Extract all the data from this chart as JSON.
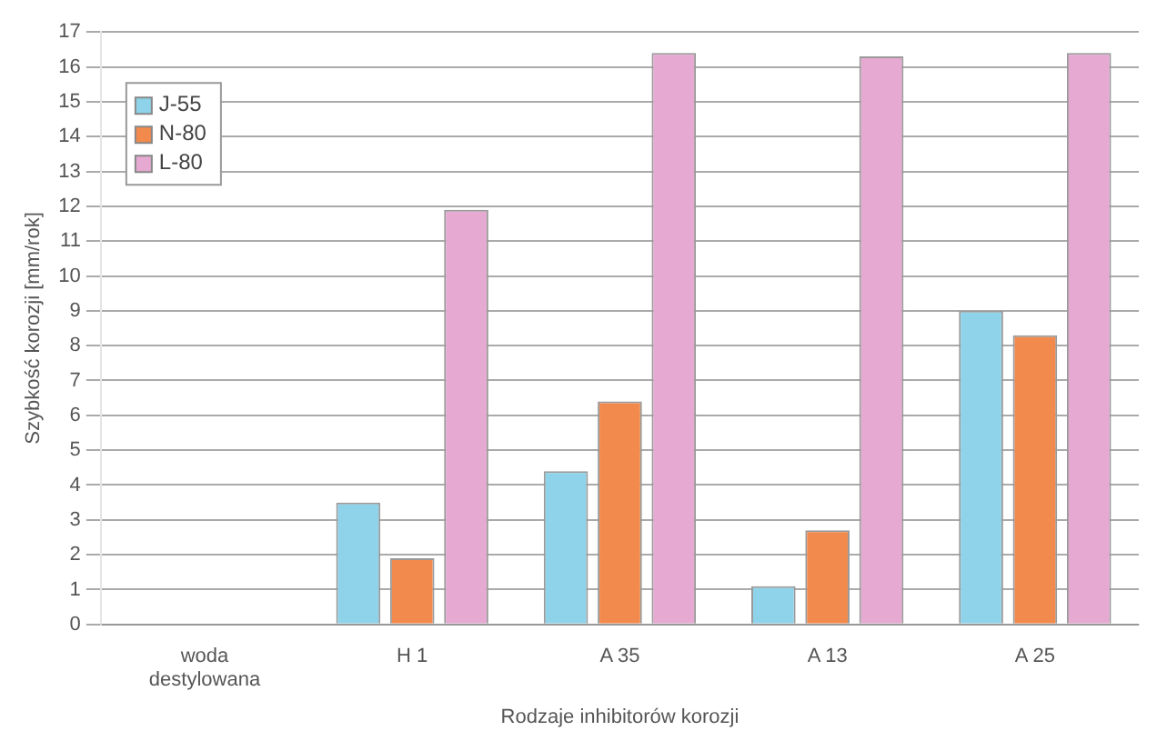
{
  "chart_data": {
    "type": "bar",
    "xlabel": "Rodzaje inhibitorów korozji",
    "ylabel": "Szybkość korozji [mm/rok]",
    "categories": [
      [
        "woda",
        "destylowana"
      ],
      "H 1",
      "A 35",
      "A 13",
      "A 25"
    ],
    "series": [
      {
        "name": "J-55",
        "color": "#8fd3ea",
        "values": [
          0,
          3.5,
          4.4,
          1.1,
          9.0
        ]
      },
      {
        "name": "N-80",
        "color": "#f28a4e",
        "values": [
          0,
          1.9,
          6.4,
          2.7,
          8.3
        ]
      },
      {
        "name": "L-80",
        "color": "#e6a9d2",
        "values": [
          0,
          11.9,
          16.4,
          16.3,
          16.4
        ]
      }
    ],
    "ylim": [
      0,
      17
    ],
    "yticks": [
      0,
      1,
      2,
      3,
      4,
      5,
      6,
      7,
      8,
      9,
      10,
      11,
      12,
      13,
      14,
      15,
      16,
      17
    ],
    "grid": "y",
    "legend": "top left"
  }
}
